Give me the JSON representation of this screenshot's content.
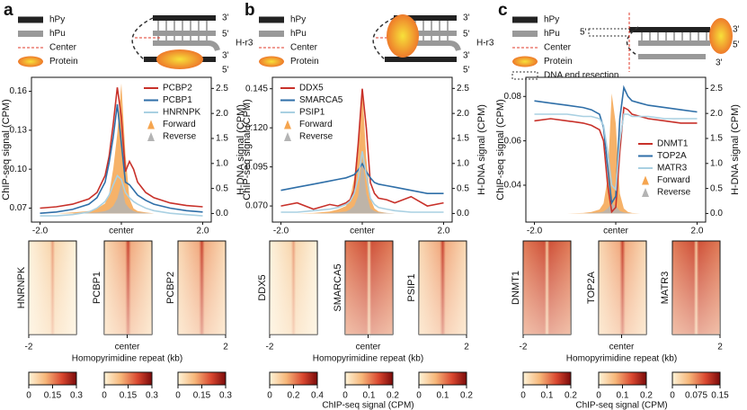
{
  "chart_data": [
    {
      "type": "line",
      "ylabel": "ChIP-seq signal (CPM)",
      "y2label": "H-DNA signal (CPM)",
      "legend": "upper right",
      "x": [
        -2,
        -1.6,
        -1.2,
        -0.8,
        -0.6,
        -0.4,
        -0.3,
        -0.2,
        -0.1,
        0,
        0.1,
        0.2,
        0.3,
        0.4,
        0.6,
        0.8,
        1.2,
        1.6,
        2
      ],
      "xlim": [
        -2.1,
        2.1
      ],
      "xticks": [
        {
          "value": -2,
          "label": "-2.0"
        },
        {
          "value": 0,
          "label": "center"
        },
        {
          "value": 2,
          "label": "2.0"
        }
      ],
      "ylim": [
        0.062,
        0.168
      ],
      "yticks": [
        0.07,
        {
          "value": 0.1,
          "label": "0.10"
        },
        0.13,
        0.16
      ],
      "y2lim": [
        -0.1,
        2.65
      ],
      "y2ticks": [
        {
          "value": 0,
          "label": "0.0"
        },
        0.5,
        {
          "value": 1,
          "label": "1.0"
        },
        1.5,
        {
          "value": 2,
          "label": "2.0"
        },
        2.5
      ],
      "series": [
        {
          "name": "Forward",
          "color": "#f5a54f",
          "axis": "y2",
          "values": [
            0,
            0,
            0.02,
            0.05,
            0.1,
            0.2,
            0.4,
            0.9,
            1.6,
            2.6,
            1.2,
            0.3,
            0.1,
            0.05,
            0.02,
            0,
            0,
            0,
            0
          ]
        },
        {
          "name": "Reverse",
          "color": "#b4b4b4",
          "axis": "y2",
          "values": [
            0,
            0,
            0,
            0.01,
            0.02,
            0.05,
            0.08,
            0.15,
            0.3,
            0.6,
            0.2,
            0.1,
            0.05,
            0.02,
            0.01,
            0,
            0,
            0,
            0
          ]
        },
        {
          "name": "PCBP2",
          "color": "#c8312a",
          "values": [
            0.07,
            0.071,
            0.073,
            0.077,
            0.082,
            0.095,
            0.11,
            0.135,
            0.163,
            0.14,
            0.098,
            0.106,
            0.1,
            0.09,
            0.082,
            0.078,
            0.074,
            0.072,
            0.071
          ]
        },
        {
          "name": "PCBP1",
          "color": "#2f6fa8",
          "values": [
            0.066,
            0.067,
            0.069,
            0.073,
            0.078,
            0.09,
            0.105,
            0.125,
            0.15,
            0.12,
            0.09,
            0.088,
            0.084,
            0.08,
            0.076,
            0.073,
            0.07,
            0.068,
            0.067
          ]
        },
        {
          "name": "HNRNPK",
          "color": "#a9d0e2",
          "values": [
            0.064,
            0.064,
            0.065,
            0.067,
            0.07,
            0.075,
            0.08,
            0.088,
            0.095,
            0.092,
            0.082,
            0.078,
            0.075,
            0.073,
            0.07,
            0.068,
            0.066,
            0.065,
            0.064
          ]
        }
      ]
    },
    {
      "type": "line",
      "ylabel": "ChIP-seq signal (CPM)",
      "y2label": "H-DNA signal (CPM)",
      "legend": "upper left",
      "x": [
        -2,
        -1.6,
        -1.2,
        -0.8,
        -0.6,
        -0.4,
        -0.3,
        -0.2,
        -0.1,
        0,
        0.1,
        0.2,
        0.3,
        0.4,
        0.6,
        0.8,
        1.2,
        1.6,
        2
      ],
      "xlim": [
        -2.1,
        2.1
      ],
      "xticks": [
        {
          "value": -2,
          "label": "-2.0"
        },
        {
          "value": 0,
          "label": "center"
        },
        {
          "value": 2,
          "label": "2.0"
        }
      ],
      "ylim": [
        0.062,
        0.15
      ],
      "yticks": [
        {
          "value": 0.07,
          "label": "0.070"
        },
        0.095,
        {
          "value": 0.12,
          "label": "0.120"
        },
        0.145
      ],
      "y2lim": [
        -0.1,
        2.65
      ],
      "y2ticks": [
        {
          "value": 0,
          "label": "0.0"
        },
        0.5,
        {
          "value": 1,
          "label": "1.0"
        },
        1.5,
        {
          "value": 2,
          "label": "2.0"
        },
        2.5
      ],
      "series": [
        {
          "name": "Forward",
          "color": "#f5a54f",
          "axis": "y2",
          "values": [
            0,
            0,
            0.01,
            0.04,
            0.08,
            0.15,
            0.3,
            0.7,
            1.5,
            2.5,
            1.1,
            0.3,
            0.1,
            0.04,
            0.01,
            0,
            0,
            0,
            0
          ]
        },
        {
          "name": "Reverse",
          "color": "#b4b4b4",
          "axis": "y2",
          "values": [
            0,
            0,
            0,
            0.01,
            0.02,
            0.04,
            0.08,
            0.15,
            0.35,
            1.1,
            0.4,
            0.1,
            0.05,
            0.02,
            0.01,
            0,
            0,
            0,
            0
          ]
        },
        {
          "name": "DDX5",
          "color": "#c8312a",
          "values": [
            0.07,
            0.072,
            0.068,
            0.071,
            0.07,
            0.072,
            0.074,
            0.08,
            0.11,
            0.145,
            0.12,
            0.085,
            0.078,
            0.075,
            0.074,
            0.072,
            0.076,
            0.07,
            0.072
          ]
        },
        {
          "name": "SMARCA5",
          "color": "#2f6fa8",
          "values": [
            0.08,
            0.082,
            0.084,
            0.086,
            0.087,
            0.088,
            0.089,
            0.09,
            0.093,
            0.097,
            0.092,
            0.088,
            0.085,
            0.084,
            0.083,
            0.082,
            0.08,
            0.078,
            0.078
          ]
        },
        {
          "name": "PSIP1",
          "color": "#a9d0e2",
          "values": [
            0.066,
            0.066,
            0.067,
            0.068,
            0.069,
            0.071,
            0.073,
            0.078,
            0.088,
            0.105,
            0.09,
            0.075,
            0.071,
            0.069,
            0.068,
            0.067,
            0.066,
            0.066,
            0.066
          ]
        }
      ]
    },
    {
      "type": "line",
      "ylabel": "ChIP-seq signal (CPM)",
      "y2label": "H-DNA signal (CPM)",
      "legend": "lower right",
      "x": [
        -2,
        -1.6,
        -1.2,
        -0.8,
        -0.6,
        -0.4,
        -0.3,
        -0.2,
        -0.1,
        0,
        0.1,
        0.2,
        0.3,
        0.4,
        0.6,
        0.8,
        1.2,
        1.6,
        2
      ],
      "xlim": [
        -2.1,
        2.1
      ],
      "xticks": [
        {
          "value": -2,
          "label": "-2.0"
        },
        {
          "value": 0,
          "label": "center"
        },
        {
          "value": 2,
          "label": "2.0"
        }
      ],
      "ylim": [
        0.025,
        0.087
      ],
      "yticks": [
        0.04,
        0.06,
        0.08
      ],
      "y2lim": [
        -0.1,
        2.65
      ],
      "y2ticks": [
        {
          "value": 0,
          "label": "0.0"
        },
        0.5,
        {
          "value": 1,
          "label": "1.0"
        },
        1.5,
        {
          "value": 2,
          "label": "2.0"
        },
        2.5
      ],
      "series": [
        {
          "name": "Forward",
          "color": "#f5a54f",
          "axis": "y2",
          "values": [
            0,
            0,
            0,
            0.01,
            0.03,
            0.08,
            0.2,
            0.7,
            2.4,
            1.8,
            0.4,
            0.1,
            0.03,
            0.01,
            0,
            0,
            0,
            0,
            0
          ]
        },
        {
          "name": "Reverse",
          "color": "#b4b4b4",
          "axis": "y2",
          "values": [
            0,
            0,
            0,
            0,
            0.01,
            0.02,
            0.04,
            0.1,
            0.2,
            0.15,
            0.05,
            0.02,
            0.01,
            0,
            0,
            0,
            0,
            0,
            0
          ]
        },
        {
          "name": "DNMT1",
          "color": "#c8312a",
          "values": [
            0.069,
            0.07,
            0.069,
            0.068,
            0.067,
            0.065,
            0.06,
            0.04,
            0.028,
            0.03,
            0.055,
            0.075,
            0.074,
            0.072,
            0.071,
            0.07,
            0.069,
            0.068,
            0.068
          ]
        },
        {
          "name": "TOP2A",
          "color": "#2f6fa8",
          "values": [
            0.078,
            0.077,
            0.076,
            0.075,
            0.074,
            0.072,
            0.066,
            0.048,
            0.032,
            0.035,
            0.07,
            0.084,
            0.08,
            0.078,
            0.077,
            0.076,
            0.075,
            0.074,
            0.073
          ]
        },
        {
          "name": "MATR3",
          "color": "#a9d0e2",
          "values": [
            0.072,
            0.072,
            0.072,
            0.071,
            0.071,
            0.07,
            0.067,
            0.055,
            0.04,
            0.038,
            0.06,
            0.072,
            0.072,
            0.071,
            0.071,
            0.071,
            0.07,
            0.07,
            0.07
          ]
        }
      ]
    }
  ],
  "panels": [
    {
      "letter": "a",
      "diagram_legend": [
        "hPy",
        "hPu",
        "Center",
        "Protein"
      ],
      "diagram_labels": [
        "3'",
        "5'",
        "H-r3",
        "3'",
        "5'"
      ],
      "heatmaps": [
        "HNRNPK",
        "PCBP1",
        "PCBP2"
      ],
      "heatmap_xticks": [
        -2,
        {
          "value": 0,
          "label": "center"
        },
        2
      ],
      "heatmap_xlim": [
        -2,
        2
      ],
      "xlabel": "Homopyrimidine repeat (kb)",
      "colorbars": [
        {
          "lim": [
            0,
            0.3
          ],
          "ticks": [
            0,
            0.15,
            0.3
          ]
        },
        {
          "lim": [
            0,
            0.3
          ],
          "ticks": [
            0,
            0.15,
            0.3
          ]
        },
        {
          "lim": [
            0,
            0.3
          ],
          "ticks": [
            0,
            0.15,
            0.3
          ]
        }
      ]
    },
    {
      "letter": "b",
      "diagram_legend": [
        "hPy",
        "hPu",
        "Center",
        "Protein"
      ],
      "diagram_labels": [
        "3'",
        "5'",
        "H-r3",
        "3'",
        "5'"
      ],
      "heatmaps": [
        "DDX5",
        "SMARCA5",
        "PSIP1"
      ],
      "heatmap_xticks": [
        -2,
        {
          "value": 0,
          "label": "center"
        },
        2
      ],
      "heatmap_xlim": [
        -2,
        2
      ],
      "xlabel": "Homopyrimidine repeat (kb)",
      "colorbars": [
        {
          "lim": [
            0,
            0.4
          ],
          "ticks": [
            0,
            0.2,
            0.4
          ]
        },
        {
          "lim": [
            0,
            0.2
          ],
          "ticks": [
            0,
            0.1,
            0.2
          ]
        },
        {
          "lim": [
            0,
            0.2
          ],
          "ticks": [
            0,
            0.1,
            0.2
          ]
        }
      ],
      "colorbar_label": "ChIP-seq signal (CPM)"
    },
    {
      "letter": "c",
      "diagram_legend": [
        "hPy",
        "hPu",
        "Center",
        "Protein",
        "DNA end resection"
      ],
      "diagram_labels": [
        "5'",
        "3'",
        "5'",
        "3'"
      ],
      "heatmaps": [
        "DNMT1",
        "TOP2A",
        "MATR3"
      ],
      "heatmap_xticks": [
        -2,
        {
          "value": 0,
          "label": "center"
        },
        2
      ],
      "heatmap_xlim": [
        -2,
        2
      ],
      "xlabel": "Homopyrimidine repeat (kb)",
      "colorbars": [
        {
          "lim": [
            0,
            0.2
          ],
          "ticks": [
            0,
            0.1,
            0.2
          ]
        },
        {
          "lim": [
            0,
            0.2
          ],
          "ticks": [
            0,
            0.1,
            0.2
          ]
        },
        {
          "lim": [
            0,
            0.15
          ],
          "ticks": [
            0,
            0.075,
            0.15
          ]
        }
      ],
      "colorbar_label": "ChIP-seq signal (CPM)"
    }
  ]
}
